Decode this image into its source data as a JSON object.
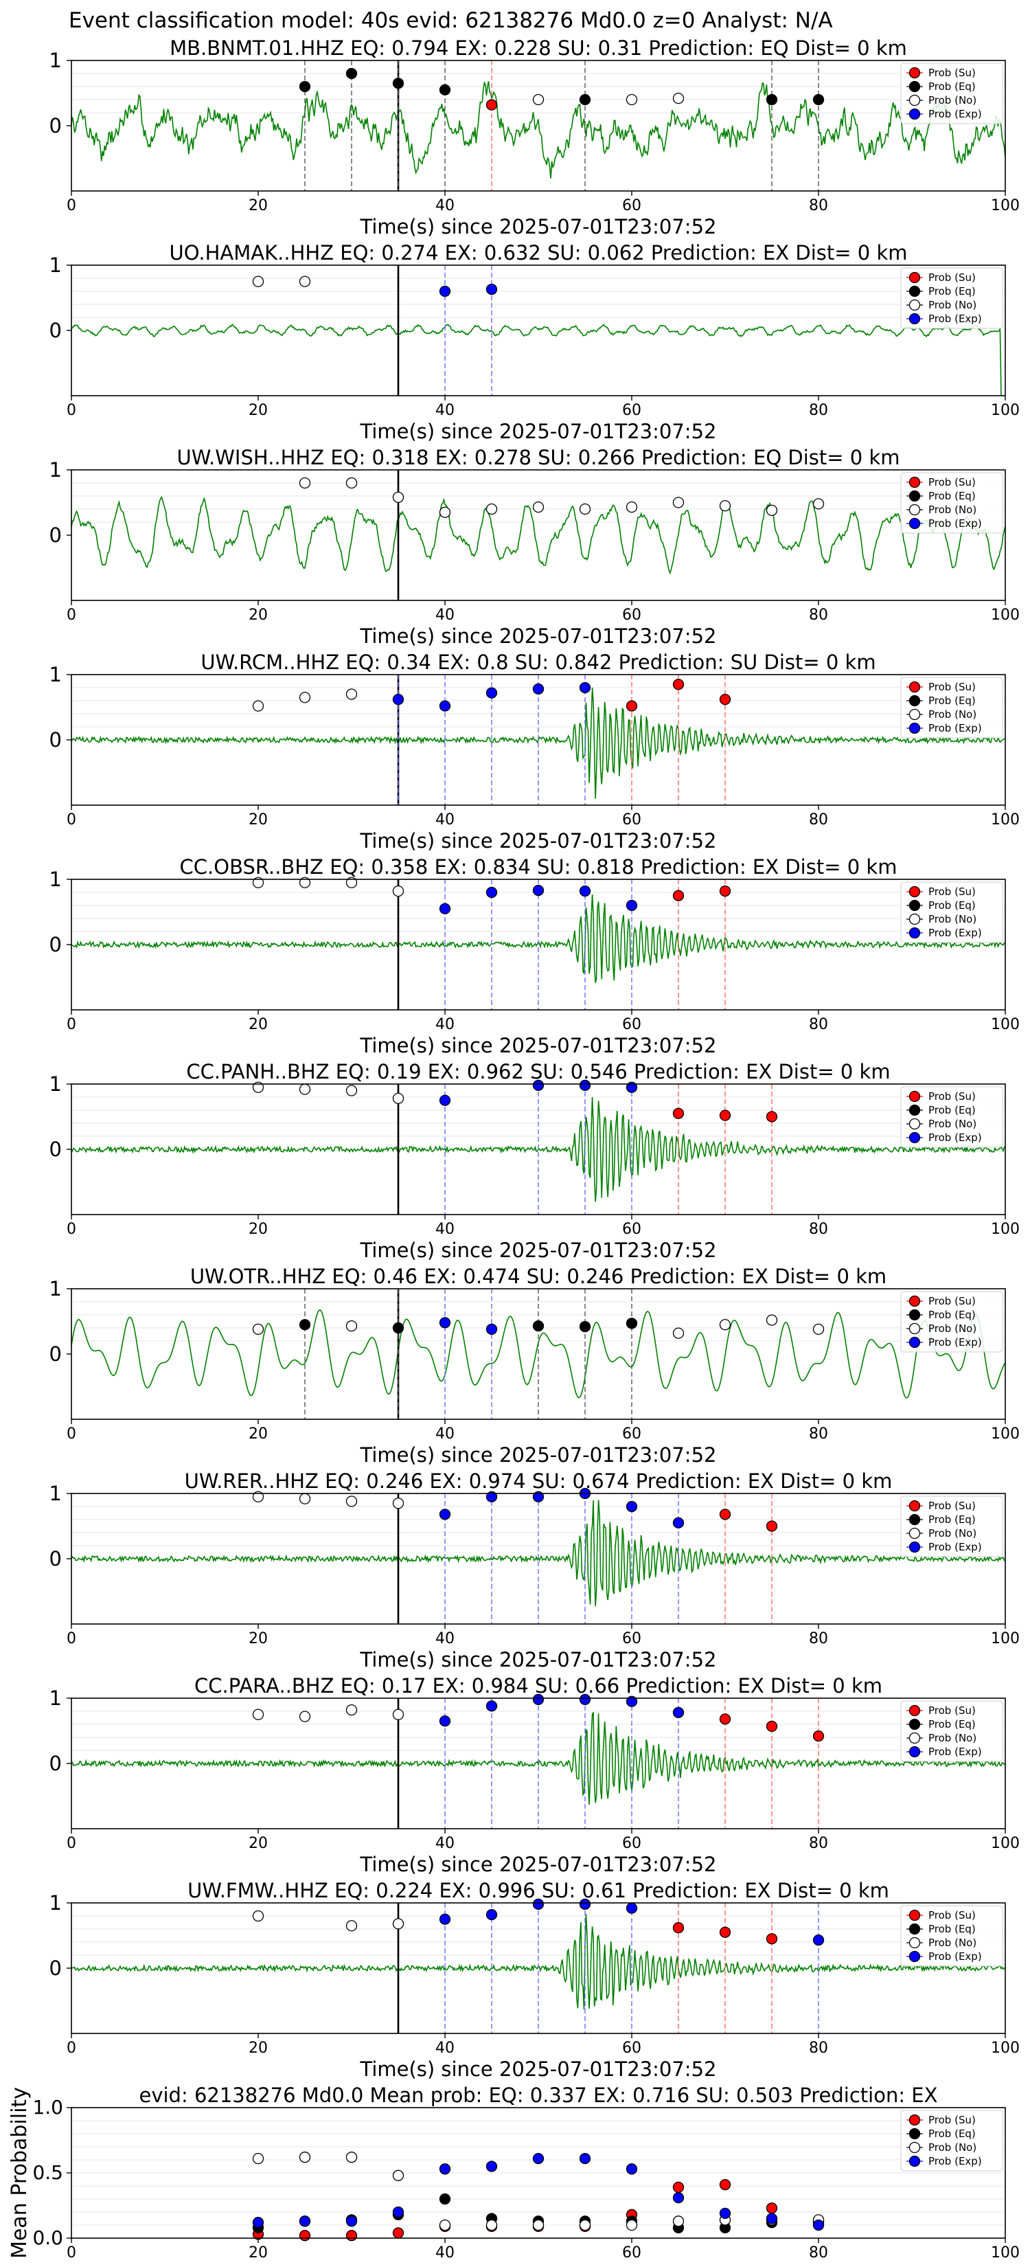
{
  "figure": {
    "suptitle": "Event classification model: 40s evid: 62138276 Md0.0 z=0 Analyst: N/A"
  },
  "legend": [
    "Prob (Su)",
    "Prob (Eq)",
    "Prob (No)",
    "Prob (Exp)"
  ],
  "colors": {
    "su": "#ff0000",
    "eq": "#000000",
    "no": "#ffffff",
    "exp": "#0000ff",
    "trace": "#008000",
    "pick": "#000000"
  },
  "chart_data": [
    {
      "type": "line",
      "title": "MB.BNMT.01.HHZ   EQ: 0.794  EX: 0.228  SU: 0.31   Prediction: EQ    Dist= 0 km",
      "xlabel": "Time(s) since 2025-07-01T23:07:52",
      "ylabel": "",
      "xlim": [
        0,
        100
      ],
      "xticks": [
        0,
        20,
        40,
        60,
        80,
        100
      ],
      "ytick_labels": [
        "0",
        "1"
      ],
      "pick_time": 35,
      "waveform": {
        "style": "noisy",
        "amp": 0.75,
        "onset": 0
      },
      "points": [
        [
          25,
          "eq",
          0.6
        ],
        [
          30,
          "eq",
          0.8
        ],
        [
          35,
          "eq",
          0.65
        ],
        [
          40,
          "eq",
          0.55
        ],
        [
          45,
          "su",
          0.32
        ],
        [
          50,
          "no",
          0.4
        ],
        [
          55,
          "eq",
          0.4
        ],
        [
          60,
          "no",
          0.4
        ],
        [
          65,
          "no",
          0.42
        ],
        [
          75,
          "eq",
          0.4
        ],
        [
          80,
          "eq",
          0.4
        ]
      ]
    },
    {
      "type": "line",
      "title": "UO.HAMAK..HHZ   EQ: 0.274  EX: 0.632  SU: 0.062   Prediction: EX    Dist= 0 km",
      "xlabel": "Time(s) since 2025-07-01T23:07:52",
      "ylabel": "",
      "xlim": [
        0,
        100
      ],
      "xticks": [
        0,
        20,
        40,
        60,
        80,
        100
      ],
      "ytick_labels": [
        "0",
        "1"
      ],
      "pick_time": 35,
      "waveform": {
        "style": "quiet",
        "amp": 0.1,
        "onset": 0
      },
      "points": [
        [
          20,
          "no",
          0.75
        ],
        [
          25,
          "no",
          0.75
        ],
        [
          40,
          "exp",
          0.6
        ],
        [
          45,
          "exp",
          0.63
        ]
      ]
    },
    {
      "type": "line",
      "title": "UW.WISH..HHZ   EQ: 0.318  EX: 0.278  SU: 0.266   Prediction: EQ    Dist= 0 km",
      "xlabel": "Time(s) since 2025-07-01T23:07:52",
      "ylabel": "",
      "xlim": [
        0,
        100
      ],
      "xticks": [
        0,
        20,
        40,
        60,
        80,
        100
      ],
      "ytick_labels": [
        "0",
        "1"
      ],
      "pick_time": 35,
      "waveform": {
        "style": "wavy",
        "amp": 0.75,
        "onset": 0
      },
      "points": [
        [
          25,
          "no",
          0.8
        ],
        [
          30,
          "no",
          0.8
        ],
        [
          35,
          "no",
          0.58
        ],
        [
          40,
          "no",
          0.35
        ],
        [
          45,
          "no",
          0.4
        ],
        [
          50,
          "no",
          0.43
        ],
        [
          55,
          "no",
          0.4
        ],
        [
          60,
          "no",
          0.43
        ],
        [
          65,
          "no",
          0.5
        ],
        [
          70,
          "no",
          0.45
        ],
        [
          75,
          "no",
          0.38
        ],
        [
          80,
          "no",
          0.48
        ]
      ]
    },
    {
      "type": "line",
      "title": "UW.RCM..HHZ   EQ: 0.34  EX: 0.8  SU: 0.842   Prediction: SU    Dist= 0 km",
      "xlabel": "Time(s) since 2025-07-01T23:07:52",
      "ylabel": "",
      "xlim": [
        0,
        100
      ],
      "xticks": [
        0,
        20,
        40,
        60,
        80,
        100
      ],
      "ytick_labels": [
        "0",
        "1"
      ],
      "pick_time": 35,
      "waveform": {
        "style": "burst",
        "amp": 0.9,
        "onset": 53
      },
      "points": [
        [
          20,
          "no",
          0.52
        ],
        [
          25,
          "no",
          0.65
        ],
        [
          30,
          "no",
          0.7
        ],
        [
          35,
          "exp",
          0.62
        ],
        [
          40,
          "exp",
          0.52
        ],
        [
          45,
          "exp",
          0.72
        ],
        [
          50,
          "exp",
          0.78
        ],
        [
          55,
          "exp",
          0.8
        ],
        [
          60,
          "su",
          0.52
        ],
        [
          65,
          "su",
          0.85
        ],
        [
          70,
          "su",
          0.62
        ]
      ]
    },
    {
      "type": "line",
      "title": "CC.OBSR..BHZ   EQ: 0.358  EX: 0.834  SU: 0.818   Prediction: EX    Dist= 0 km",
      "xlabel": "Time(s) since 2025-07-01T23:07:52",
      "ylabel": "",
      "xlim": [
        0,
        100
      ],
      "xticks": [
        0,
        20,
        40,
        60,
        80,
        100
      ],
      "ytick_labels": [
        "0",
        "1"
      ],
      "pick_time": 35,
      "waveform": {
        "style": "burst",
        "amp": 0.85,
        "onset": 53
      },
      "points": [
        [
          20,
          "no",
          0.95
        ],
        [
          25,
          "no",
          0.95
        ],
        [
          30,
          "no",
          0.95
        ],
        [
          35,
          "no",
          0.82
        ],
        [
          40,
          "exp",
          0.55
        ],
        [
          45,
          "exp",
          0.8
        ],
        [
          50,
          "exp",
          0.83
        ],
        [
          55,
          "exp",
          0.82
        ],
        [
          60,
          "exp",
          0.6
        ],
        [
          65,
          "su",
          0.75
        ],
        [
          70,
          "su",
          0.82
        ]
      ]
    },
    {
      "type": "line",
      "title": "CC.PANH..BHZ   EQ: 0.19  EX: 0.962  SU: 0.546   Prediction: EX    Dist= 0 km",
      "xlabel": "Time(s) since 2025-07-01T23:07:52",
      "ylabel": "",
      "xlim": [
        0,
        100
      ],
      "xticks": [
        0,
        20,
        40,
        60,
        80,
        100
      ],
      "ytick_labels": [
        "0",
        "1"
      ],
      "pick_time": 35,
      "waveform": {
        "style": "burst",
        "amp": 0.95,
        "onset": 53
      },
      "points": [
        [
          20,
          "no",
          0.95
        ],
        [
          25,
          "no",
          0.92
        ],
        [
          30,
          "no",
          0.9
        ],
        [
          35,
          "no",
          0.78
        ],
        [
          40,
          "exp",
          0.75
        ],
        [
          50,
          "exp",
          0.98
        ],
        [
          55,
          "exp",
          0.98
        ],
        [
          60,
          "exp",
          0.95
        ],
        [
          65,
          "su",
          0.55
        ],
        [
          70,
          "su",
          0.52
        ],
        [
          75,
          "su",
          0.5
        ]
      ]
    },
    {
      "type": "line",
      "title": "UW.OTR..HHZ   EQ: 0.46  EX: 0.474  SU: 0.246   Prediction: EX    Dist= 0 km",
      "xlabel": "Time(s) since 2025-07-01T23:07:52",
      "ylabel": "",
      "xlim": [
        0,
        100
      ],
      "xticks": [
        0,
        20,
        40,
        60,
        80,
        100
      ],
      "ytick_labels": [
        "0",
        "1"
      ],
      "pick_time": 35,
      "waveform": {
        "style": "smooth",
        "amp": 0.75,
        "onset": 0
      },
      "points": [
        [
          20,
          "no",
          0.38
        ],
        [
          25,
          "eq",
          0.45
        ],
        [
          30,
          "no",
          0.43
        ],
        [
          35,
          "eq",
          0.4
        ],
        [
          40,
          "exp",
          0.48
        ],
        [
          45,
          "exp",
          0.38
        ],
        [
          50,
          "eq",
          0.43
        ],
        [
          55,
          "eq",
          0.42
        ],
        [
          60,
          "eq",
          0.47
        ],
        [
          65,
          "no",
          0.32
        ],
        [
          70,
          "no",
          0.45
        ],
        [
          75,
          "no",
          0.52
        ],
        [
          80,
          "no",
          0.38
        ]
      ]
    },
    {
      "type": "line",
      "title": "UW.RER..HHZ   EQ: 0.246  EX: 0.974  SU: 0.674   Prediction: EX    Dist= 0 km",
      "xlabel": "Time(s) since 2025-07-01T23:07:52",
      "ylabel": "",
      "xlim": [
        0,
        100
      ],
      "xticks": [
        0,
        20,
        40,
        60,
        80,
        100
      ],
      "ytick_labels": [
        "0",
        "1"
      ],
      "pick_time": 35,
      "waveform": {
        "style": "burst",
        "amp": 0.95,
        "onset": 53
      },
      "points": [
        [
          20,
          "no",
          0.95
        ],
        [
          25,
          "no",
          0.92
        ],
        [
          30,
          "no",
          0.88
        ],
        [
          35,
          "no",
          0.85
        ],
        [
          40,
          "exp",
          0.68
        ],
        [
          45,
          "exp",
          0.95
        ],
        [
          50,
          "exp",
          0.95
        ],
        [
          55,
          "exp",
          1.0
        ],
        [
          60,
          "exp",
          0.8
        ],
        [
          65,
          "exp",
          0.55
        ],
        [
          70,
          "su",
          0.68
        ],
        [
          75,
          "su",
          0.5
        ]
      ]
    },
    {
      "type": "line",
      "title": "CC.PARA..BHZ   EQ: 0.17  EX: 0.984  SU: 0.66   Prediction: EX    Dist= 0 km",
      "xlabel": "Time(s) since 2025-07-01T23:07:52",
      "ylabel": "",
      "xlim": [
        0,
        100
      ],
      "xticks": [
        0,
        20,
        40,
        60,
        80,
        100
      ],
      "ytick_labels": [
        "0",
        "1"
      ],
      "pick_time": 35,
      "waveform": {
        "style": "burst",
        "amp": 0.95,
        "onset": 53
      },
      "points": [
        [
          20,
          "no",
          0.75
        ],
        [
          25,
          "no",
          0.72
        ],
        [
          30,
          "no",
          0.82
        ],
        [
          35,
          "no",
          0.75
        ],
        [
          40,
          "exp",
          0.65
        ],
        [
          45,
          "exp",
          0.88
        ],
        [
          50,
          "exp",
          0.98
        ],
        [
          55,
          "exp",
          0.98
        ],
        [
          60,
          "exp",
          0.95
        ],
        [
          65,
          "exp",
          0.78
        ],
        [
          70,
          "su",
          0.68
        ],
        [
          75,
          "su",
          0.57
        ],
        [
          80,
          "su",
          0.42
        ]
      ]
    },
    {
      "type": "line",
      "title": "UW.FMW..HHZ   EQ: 0.224  EX: 0.996  SU: 0.61   Prediction: EX    Dist= 0 km",
      "xlabel": "Time(s) since 2025-07-01T23:07:52",
      "ylabel": "",
      "xlim": [
        0,
        100
      ],
      "xticks": [
        0,
        20,
        40,
        60,
        80,
        100
      ],
      "ytick_labels": [
        "0",
        "1"
      ],
      "pick_time": 35,
      "waveform": {
        "style": "burst",
        "amp": 0.9,
        "onset": 52
      },
      "points": [
        [
          20,
          "no",
          0.8
        ],
        [
          30,
          "no",
          0.65
        ],
        [
          35,
          "no",
          0.68
        ],
        [
          40,
          "exp",
          0.75
        ],
        [
          45,
          "exp",
          0.82
        ],
        [
          50,
          "exp",
          0.98
        ],
        [
          55,
          "exp",
          0.98
        ],
        [
          60,
          "exp",
          0.92
        ],
        [
          65,
          "su",
          0.62
        ],
        [
          70,
          "su",
          0.55
        ],
        [
          75,
          "su",
          0.45
        ],
        [
          80,
          "exp",
          0.43
        ]
      ]
    },
    {
      "type": "scatter",
      "title": "evid: 62138276  Md0.0   Mean prob:   EQ: 0.337  EX: 0.716  SU: 0.503   Prediction: EX",
      "xlabel": "",
      "ylabel": "Mean Probability",
      "xlim": [
        0,
        100
      ],
      "ylim": [
        0,
        1.0
      ],
      "xticks": [
        0,
        20,
        40,
        60,
        80,
        100
      ],
      "ytick_labels": [
        "0.0",
        "0.5",
        "1.0"
      ],
      "series": [
        {
          "name": "Prob (Su)",
          "key": "su",
          "x": [
            20,
            25,
            30,
            35,
            40,
            45,
            50,
            55,
            60,
            65,
            70,
            75,
            80
          ],
          "y": [
            0.03,
            0.02,
            0.02,
            0.04,
            0.09,
            0.09,
            0.09,
            0.09,
            0.18,
            0.39,
            0.41,
            0.23,
            0.13
          ]
        },
        {
          "name": "Prob (Eq)",
          "key": "eq",
          "x": [
            20,
            25,
            30,
            35,
            40,
            45,
            50,
            55,
            60,
            65,
            70,
            75,
            80
          ],
          "y": [
            0.08,
            0.13,
            0.14,
            0.18,
            0.3,
            0.15,
            0.13,
            0.13,
            0.13,
            0.08,
            0.08,
            0.12,
            0.12
          ]
        },
        {
          "name": "Prob (No)",
          "key": "no",
          "x": [
            20,
            25,
            30,
            35,
            40,
            45,
            50,
            55,
            60,
            65,
            70,
            75,
            80
          ],
          "y": [
            0.61,
            0.62,
            0.62,
            0.48,
            0.1,
            0.1,
            0.1,
            0.1,
            0.1,
            0.13,
            0.14,
            0.14,
            0.14
          ]
        },
        {
          "name": "Prob (Exp)",
          "key": "exp",
          "x": [
            20,
            25,
            30,
            35,
            40,
            45,
            50,
            55,
            60,
            65,
            70,
            75,
            80
          ],
          "y": [
            0.12,
            0.13,
            0.13,
            0.2,
            0.53,
            0.55,
            0.61,
            0.61,
            0.53,
            0.31,
            0.19,
            0.15,
            0.1
          ]
        }
      ]
    }
  ]
}
